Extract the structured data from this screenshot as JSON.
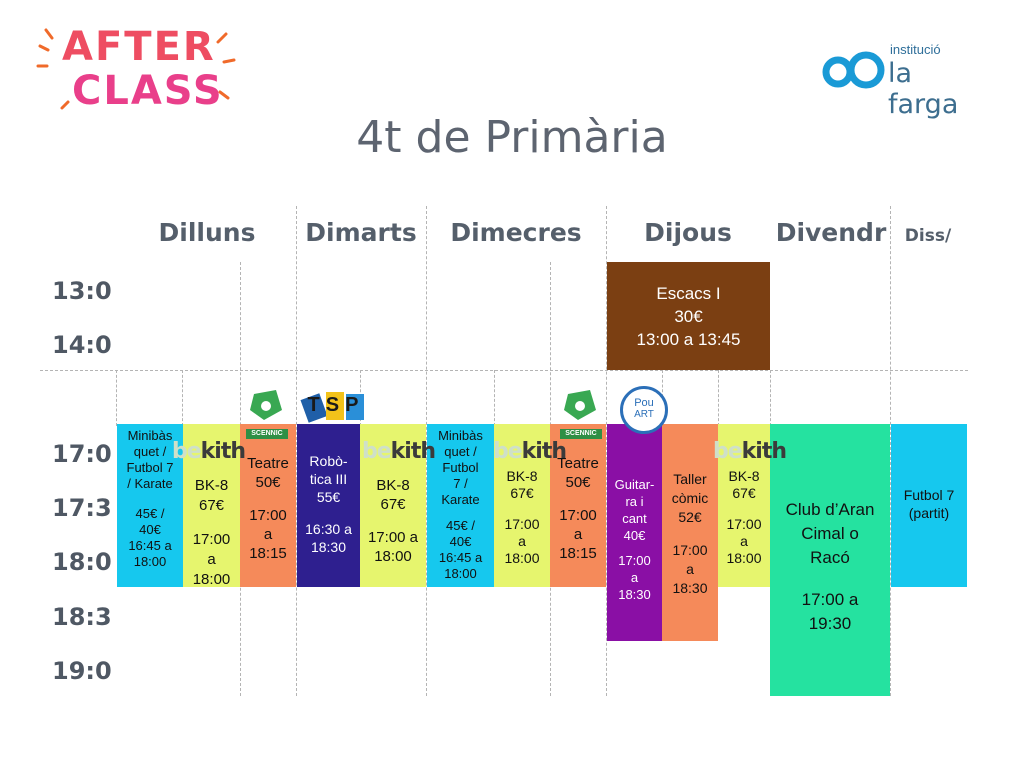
{
  "branding": {
    "logo_line1": "AFTER",
    "logo_line2": "CLASS",
    "institution_small": "institució",
    "institution_name": "la farga"
  },
  "page_title": "4t de Primària",
  "days": [
    "Dilluns",
    "Dimarts",
    "Dimecres",
    "Dijous",
    "Divendr",
    "Diss/"
  ],
  "times": [
    "13:0",
    "14:0",
    "17:0",
    "17:3",
    "18:0",
    "18:3",
    "19:0"
  ],
  "provider_logos": {
    "scennic": "SCENNIC",
    "tsp": "TSP",
    "pou_art_line1": "Pou",
    "pou_art_line2": "ART",
    "bekith_be": "be",
    "bekith_kith": "kith"
  },
  "colors": {
    "cyan": "#16c8ee",
    "lime": "#e6f56e",
    "orange": "#f58a5a",
    "indigo": "#2e1f8f",
    "purple": "#8a0fa5",
    "green": "#25e2a0",
    "brown": "#7b3f12"
  },
  "activities": {
    "escacs": {
      "line1": "Escacs I",
      "line2": "30€",
      "line3": "13:00 a 13:45"
    },
    "mon_basket": {
      "line1": "Minibàs",
      "line2": "quet /",
      "line3": "Futbol 7",
      "line4": "/ Karate",
      "line5": "45€ /",
      "line6": "40€",
      "line7": "16:45 a",
      "line8": "18:00"
    },
    "mon_bk8": {
      "line1": "BK-8",
      "line2": "67€",
      "line3": "17:00",
      "line4": "a",
      "line5": "18:00"
    },
    "mon_teatre": {
      "line1": "Teatre",
      "line2": "50€",
      "line3": "17:00",
      "line4": "a",
      "line5": "18:15"
    },
    "tue_robotica": {
      "line1": "Robò-",
      "line2": "tica III",
      "line3": "55€",
      "line4": "16:30 a",
      "line5": "18:30"
    },
    "tue_bk8": {
      "line1": "BK-8",
      "line2": "67€",
      "line3": "17:00 a",
      "line4": "18:00"
    },
    "wed_basket": {
      "line1": "Minibàs",
      "line2": "quet /",
      "line3": "Futbol",
      "line4": "7 /",
      "line5": "Karate",
      "line6": "45€ /",
      "line7": "40€",
      "line8": "16:45 a",
      "line9": "18:00"
    },
    "wed_bk8": {
      "line1": "BK-8",
      "line2": "67€",
      "line3": "17:00",
      "line4": "a",
      "line5": "18:00"
    },
    "wed_teatre": {
      "line1": "Teatre",
      "line2": "50€",
      "line3": "17:00",
      "line4": "a",
      "line5": "18:15"
    },
    "thu_guitarra": {
      "line1": "Guitar-",
      "line2": "ra i",
      "line3": "cant",
      "line4": "40€",
      "line5": "17:00",
      "line6": "a",
      "line7": "18:30"
    },
    "thu_comic": {
      "line1": "Taller",
      "line2": "còmic",
      "line3": "52€",
      "line4": "17:00",
      "line5": "a",
      "line6": "18:30"
    },
    "thu_bk8": {
      "line1": "BK-8",
      "line2": "67€",
      "line3": "17:00",
      "line4": "a",
      "line5": "18:00"
    },
    "fri_club": {
      "line1": "Club d’Aran",
      "line2": "Cimal o",
      "line3": "Racó",
      "line4": "17:00 a",
      "line5": "19:30"
    },
    "sat_futbol": {
      "line1": "Futbol 7",
      "line2": "(partit)"
    }
  }
}
